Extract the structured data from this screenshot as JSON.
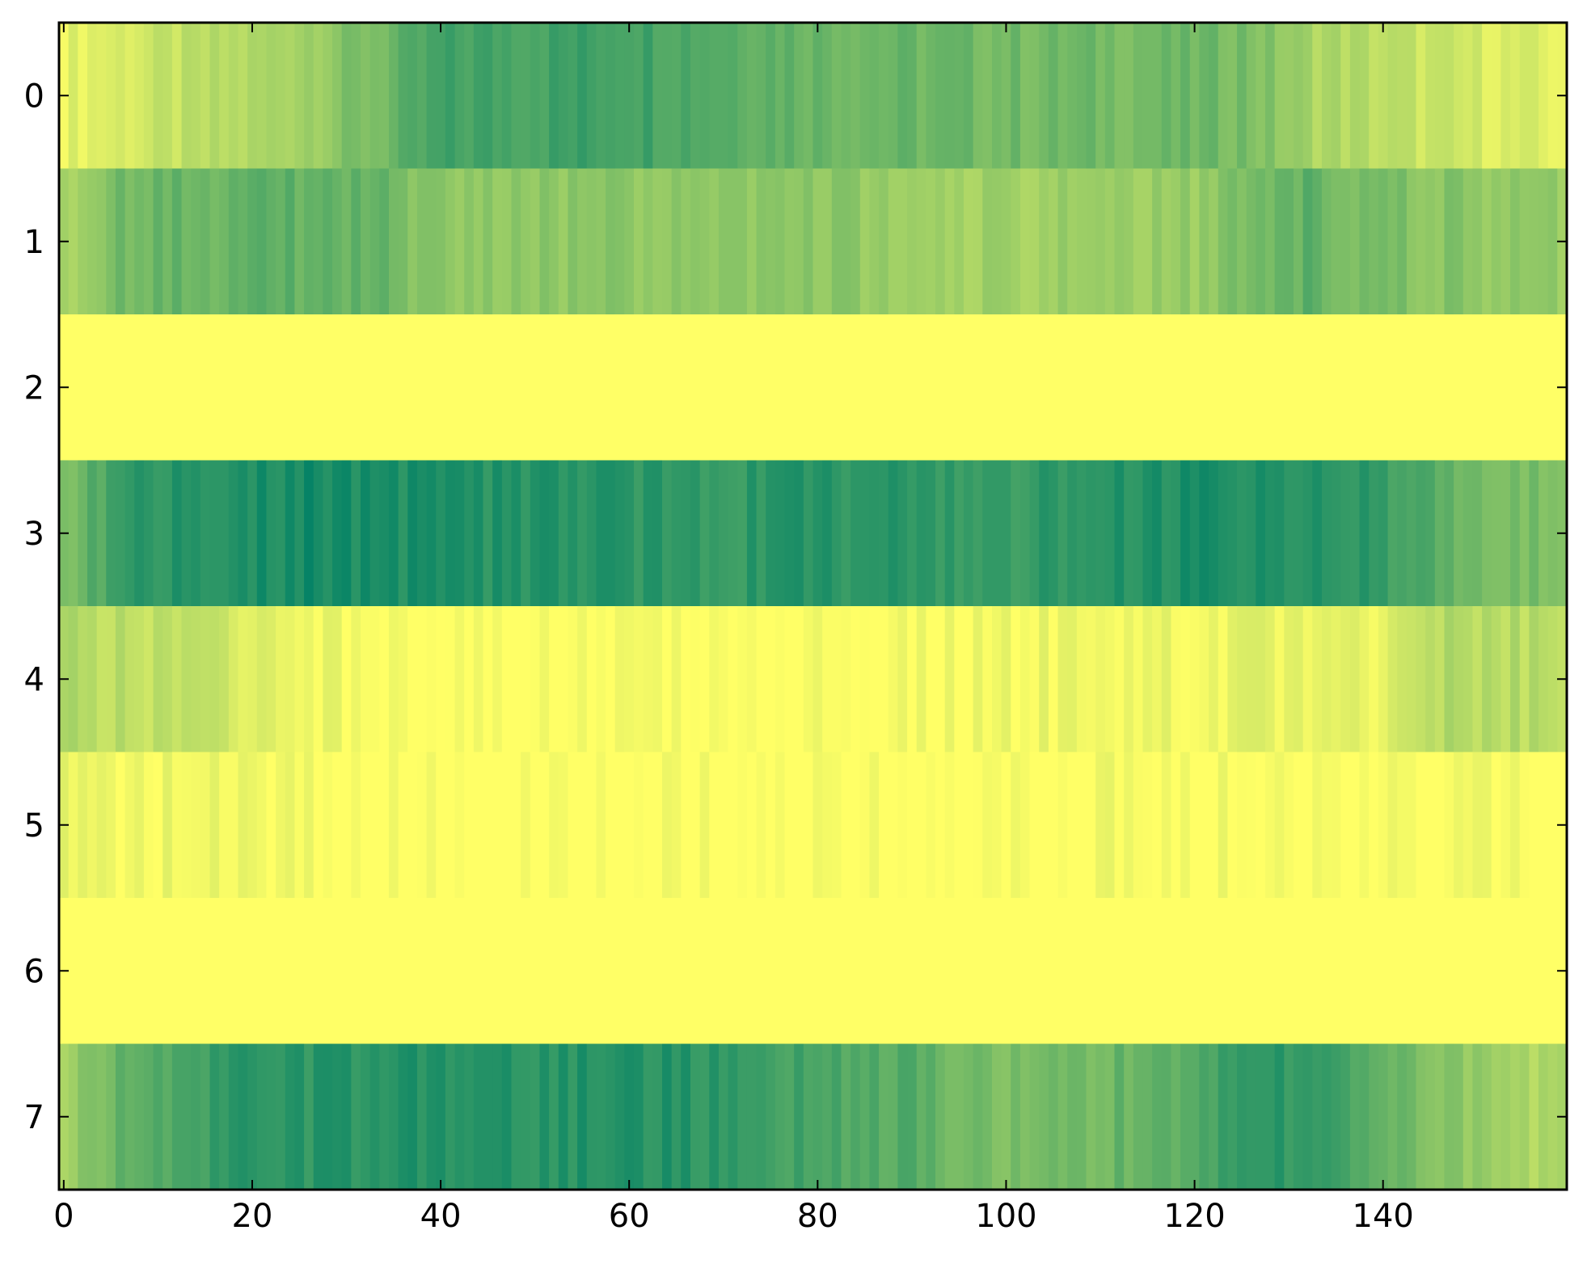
{
  "chart_data": {
    "type": "heatmap",
    "title": "",
    "xlabel": "",
    "ylabel": "",
    "colormap": "summer_r",
    "colors": {
      "low": "#ffff66",
      "high": "#008066"
    },
    "vmin": 0,
    "vmax": 1,
    "n_cols": 160,
    "n_rows": 8,
    "xlim": [
      -0.5,
      159.5
    ],
    "ylim": [
      7.5,
      -0.5
    ],
    "x_ticks": [
      0,
      20,
      40,
      60,
      80,
      100,
      120,
      140
    ],
    "x_tick_labels": [
      "0",
      "20",
      "40",
      "60",
      "80",
      "100",
      "120",
      "140"
    ],
    "y_ticks": [
      0,
      1,
      2,
      3,
      4,
      5,
      6,
      7
    ],
    "y_tick_labels": [
      "0",
      "1",
      "2",
      "3",
      "4",
      "5",
      "6",
      "7"
    ],
    "grid": false,
    "legend": "none",
    "rows": [
      {
        "row": 0,
        "profile": [
          [
            0,
            0.1
          ],
          [
            8,
            0.18
          ],
          [
            20,
            0.3
          ],
          [
            34,
            0.55
          ],
          [
            40,
            0.72
          ],
          [
            60,
            0.76
          ],
          [
            80,
            0.6
          ],
          [
            100,
            0.55
          ],
          [
            125,
            0.55
          ],
          [
            132,
            0.35
          ],
          [
            145,
            0.2
          ],
          [
            159,
            0.1
          ]
        ]
      },
      {
        "row": 1,
        "profile": [
          [
            0,
            0.3
          ],
          [
            5,
            0.55
          ],
          [
            20,
            0.62
          ],
          [
            34,
            0.58
          ],
          [
            40,
            0.42
          ],
          [
            60,
            0.45
          ],
          [
            80,
            0.45
          ],
          [
            95,
            0.35
          ],
          [
            110,
            0.38
          ],
          [
            120,
            0.4
          ],
          [
            125,
            0.55
          ],
          [
            132,
            0.62
          ],
          [
            140,
            0.5
          ],
          [
            150,
            0.45
          ],
          [
            159,
            0.4
          ]
        ]
      },
      {
        "row": 2,
        "profile": [
          [
            0,
            0.0
          ],
          [
            159,
            0.0
          ]
        ]
      },
      {
        "row": 3,
        "profile": [
          [
            0,
            0.5
          ],
          [
            6,
            0.78
          ],
          [
            25,
            0.92
          ],
          [
            45,
            0.85
          ],
          [
            70,
            0.8
          ],
          [
            80,
            0.85
          ],
          [
            100,
            0.78
          ],
          [
            120,
            0.88
          ],
          [
            140,
            0.8
          ],
          [
            148,
            0.55
          ],
          [
            159,
            0.5
          ]
        ]
      },
      {
        "row": 4,
        "profile": [
          [
            0,
            0.3
          ],
          [
            5,
            0.28
          ],
          [
            20,
            0.15
          ],
          [
            32,
            0.02
          ],
          [
            60,
            0.0
          ],
          [
            80,
            0.02
          ],
          [
            100,
            0.05
          ],
          [
            120,
            0.08
          ],
          [
            140,
            0.1
          ],
          [
            146,
            0.3
          ],
          [
            159,
            0.28
          ]
        ]
      },
      {
        "row": 5,
        "profile": [
          [
            0,
            0.08
          ],
          [
            15,
            0.05
          ],
          [
            26,
            0.02
          ],
          [
            40,
            0.0
          ],
          [
            100,
            0.01
          ],
          [
            110,
            0.03
          ],
          [
            130,
            0.02
          ],
          [
            159,
            0.02
          ]
        ]
      },
      {
        "row": 6,
        "profile": [
          [
            0,
            0.0
          ],
          [
            159,
            0.0
          ]
        ]
      },
      {
        "row": 7,
        "profile": [
          [
            0,
            0.35
          ],
          [
            5,
            0.6
          ],
          [
            18,
            0.8
          ],
          [
            40,
            0.85
          ],
          [
            65,
            0.85
          ],
          [
            75,
            0.75
          ],
          [
            90,
            0.65
          ],
          [
            100,
            0.5
          ],
          [
            120,
            0.65
          ],
          [
            125,
            0.85
          ],
          [
            135,
            0.78
          ],
          [
            140,
            0.6
          ],
          [
            150,
            0.4
          ],
          [
            159,
            0.3
          ]
        ]
      }
    ]
  }
}
